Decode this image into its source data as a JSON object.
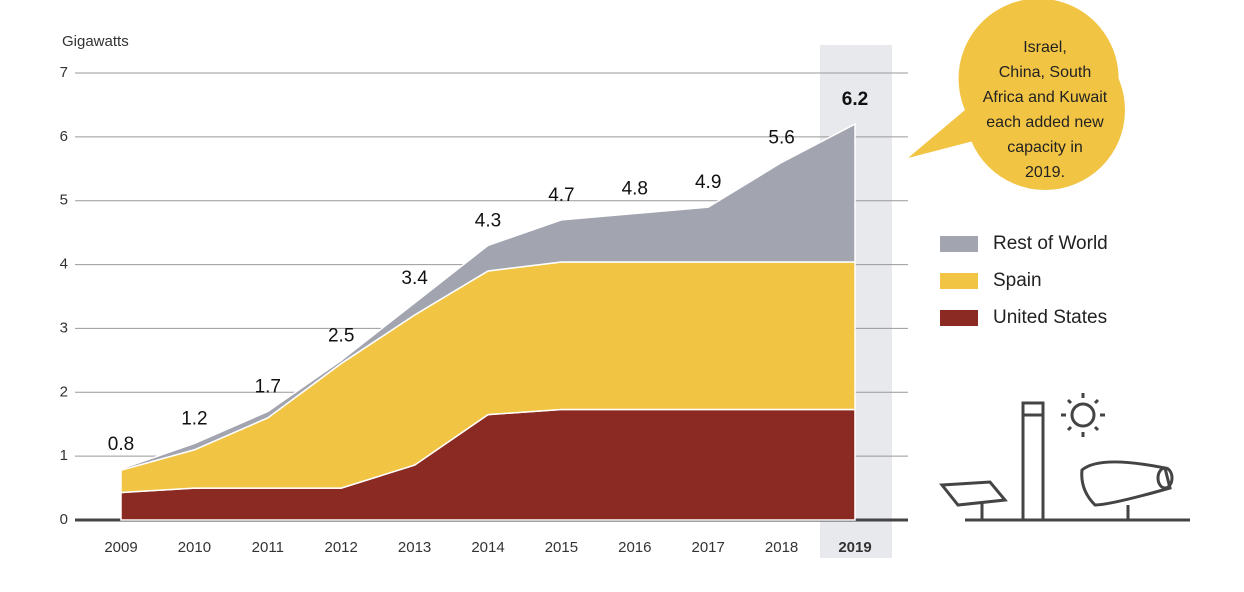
{
  "chart_data": {
    "type": "area",
    "stacked": true,
    "y_label": "Gigawatts",
    "categories": [
      "2009",
      "2010",
      "2011",
      "2012",
      "2013",
      "2014",
      "2015",
      "2016",
      "2017",
      "2018",
      "2019"
    ],
    "highlight_category": 10,
    "series": [
      {
        "name": "United States",
        "color": "#8a2a22",
        "values": [
          0.43,
          0.5,
          0.5,
          0.5,
          0.86,
          1.65,
          1.73,
          1.73,
          1.73,
          1.73,
          1.73
        ]
      },
      {
        "name": "Spain",
        "color": "#f2c443",
        "values": [
          0.35,
          0.6,
          1.1,
          1.95,
          2.35,
          2.25,
          2.31,
          2.31,
          2.31,
          2.31,
          2.31
        ]
      },
      {
        "name": "Rest of World",
        "color": "#a2a5b0",
        "values": [
          0.02,
          0.1,
          0.1,
          0.05,
          0.19,
          0.4,
          0.66,
          0.76,
          0.86,
          1.56,
          2.16
        ]
      }
    ],
    "totals": [
      0.8,
      1.2,
      1.7,
      2.5,
      3.4,
      4.3,
      4.7,
      4.8,
      4.9,
      5.6,
      6.2
    ],
    "ylim": [
      0,
      7
    ],
    "yticks": [
      0,
      1,
      2,
      3,
      4,
      5,
      6,
      7
    ],
    "grid": true,
    "annotation": {
      "lines": [
        "Israel,",
        "China, South",
        "Africa and Kuwait",
        "each added new",
        "capacity in",
        "2019."
      ],
      "color": "#f2c443"
    }
  }
}
